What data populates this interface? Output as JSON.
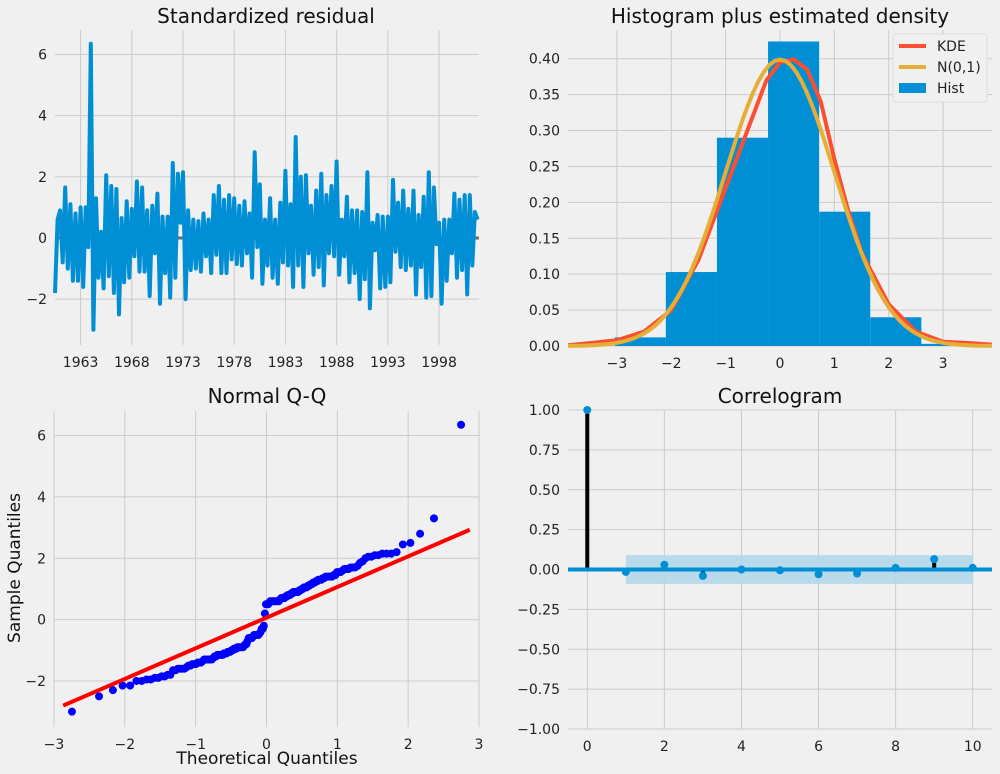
{
  "chart_data": [
    {
      "type": "line",
      "title": "Standardized residual",
      "xlim": [
        1960.5,
        2001.9
      ],
      "ylim": [
        -3.5,
        6.8
      ],
      "xticks": [
        1963,
        1968,
        1973,
        1978,
        1983,
        1988,
        1993,
        1998
      ],
      "xtick_labels": [
        "1963",
        "1968",
        "1973",
        "1978",
        "1983",
        "1988",
        "1993",
        "1998"
      ],
      "yticks": [
        -2,
        0,
        2,
        4,
        6
      ],
      "ytick_labels": [
        "−2",
        "0",
        "2",
        "4",
        "6"
      ],
      "grid": true,
      "colors": {
        "line": "#008fd5",
        "zero_line": "#6d6d6d"
      },
      "points": [
        [
          1960.5,
          -1.8
        ],
        [
          1960.75,
          0.6
        ],
        [
          1961.0,
          0.9
        ],
        [
          1961.25,
          -0.8
        ],
        [
          1961.5,
          1.65
        ],
        [
          1961.75,
          -1.0
        ],
        [
          1962.0,
          1.1
        ],
        [
          1962.25,
          -1.4
        ],
        [
          1962.5,
          0.8
        ],
        [
          1962.75,
          -1.4
        ],
        [
          1963.0,
          1.0
        ],
        [
          1963.25,
          -1.6
        ],
        [
          1963.5,
          1.0
        ],
        [
          1963.75,
          -0.3
        ],
        [
          1964.0,
          6.35
        ],
        [
          1964.25,
          -3.0
        ],
        [
          1964.5,
          1.3
        ],
        [
          1964.75,
          -1.3
        ],
        [
          1965.0,
          0.2
        ],
        [
          1965.25,
          -1.65
        ],
        [
          1965.5,
          2.05
        ],
        [
          1965.75,
          -1.25
        ],
        [
          1966.0,
          1.7
        ],
        [
          1966.25,
          -1.8
        ],
        [
          1966.5,
          1.6
        ],
        [
          1966.75,
          -2.5
        ],
        [
          1967.0,
          0.65
        ],
        [
          1967.25,
          -1.45
        ],
        [
          1967.5,
          1.2
        ],
        [
          1967.75,
          -1.3
        ],
        [
          1968.0,
          0.95
        ],
        [
          1968.25,
          -0.6
        ],
        [
          1968.5,
          1.85
        ],
        [
          1968.75,
          -1.1
        ],
        [
          1969.0,
          1.65
        ],
        [
          1969.25,
          -1.1
        ],
        [
          1969.5,
          0.9
        ],
        [
          1969.75,
          -1.9
        ],
        [
          1970.0,
          1.05
        ],
        [
          1970.25,
          -0.5
        ],
        [
          1970.5,
          1.45
        ],
        [
          1970.75,
          -2.15
        ],
        [
          1971.0,
          0.7
        ],
        [
          1971.25,
          -1.15
        ],
        [
          1971.5,
          0.7
        ],
        [
          1971.75,
          -1.95
        ],
        [
          1972.0,
          2.45
        ],
        [
          1972.25,
          -1.3
        ],
        [
          1972.5,
          2.1
        ],
        [
          1972.75,
          0.5
        ],
        [
          1973.0,
          2.15
        ],
        [
          1973.25,
          -2.0
        ],
        [
          1973.5,
          0.9
        ],
        [
          1973.75,
          -1.05
        ],
        [
          1974.0,
          0.6
        ],
        [
          1974.25,
          -1.0
        ],
        [
          1974.5,
          0.55
        ],
        [
          1974.75,
          -1.1
        ],
        [
          1975.0,
          0.8
        ],
        [
          1975.25,
          -0.6
        ],
        [
          1975.5,
          0.6
        ],
        [
          1975.75,
          -1.15
        ],
        [
          1976.0,
          1.4
        ],
        [
          1976.25,
          -0.55
        ],
        [
          1976.5,
          1.7
        ],
        [
          1976.75,
          -1.15
        ],
        [
          1977.0,
          1.25
        ],
        [
          1977.25,
          -1.15
        ],
        [
          1977.5,
          1.4
        ],
        [
          1977.75,
          -0.7
        ],
        [
          1978.0,
          1.3
        ],
        [
          1978.25,
          -0.85
        ],
        [
          1978.5,
          1.05
        ],
        [
          1978.75,
          -0.9
        ],
        [
          1979.0,
          1.2
        ],
        [
          1979.25,
          -0.5
        ],
        [
          1979.5,
          0.8
        ],
        [
          1979.75,
          -1.3
        ],
        [
          1980.0,
          2.8
        ],
        [
          1980.25,
          -0.3
        ],
        [
          1980.5,
          1.75
        ],
        [
          1980.75,
          -1.5
        ],
        [
          1981.0,
          0.6
        ],
        [
          1981.25,
          -0.9
        ],
        [
          1981.5,
          1.3
        ],
        [
          1981.75,
          -1.3
        ],
        [
          1982.0,
          0.6
        ],
        [
          1982.25,
          -1.5
        ],
        [
          1982.5,
          1.15
        ],
        [
          1982.75,
          -0.8
        ],
        [
          1983.0,
          2.2
        ],
        [
          1983.25,
          -0.9
        ],
        [
          1983.5,
          1.1
        ],
        [
          1983.75,
          -1.6
        ],
        [
          1984.0,
          3.3
        ],
        [
          1984.25,
          -0.9
        ],
        [
          1984.5,
          2.0
        ],
        [
          1984.75,
          -1.6
        ],
        [
          1985.0,
          2.05
        ],
        [
          1985.25,
          -0.5
        ],
        [
          1985.5,
          1.05
        ],
        [
          1985.75,
          -1.2
        ],
        [
          1986.0,
          1.55
        ],
        [
          1986.25,
          -0.95
        ],
        [
          1986.5,
          2.1
        ],
        [
          1986.75,
          -1.55
        ],
        [
          1987.0,
          1.4
        ],
        [
          1987.25,
          -0.5
        ],
        [
          1987.5,
          1.7
        ],
        [
          1987.75,
          -0.6
        ],
        [
          1988.0,
          2.5
        ],
        [
          1988.25,
          -1.2
        ],
        [
          1988.5,
          0.6
        ],
        [
          1988.75,
          -0.6
        ],
        [
          1989.0,
          1.35
        ],
        [
          1989.25,
          -1.45
        ],
        [
          1989.5,
          0.9
        ],
        [
          1989.75,
          -1.15
        ],
        [
          1990.0,
          0.9
        ],
        [
          1990.25,
          -2.0
        ],
        [
          1990.5,
          0.85
        ],
        [
          1990.75,
          -1.35
        ],
        [
          1991.0,
          2.15
        ],
        [
          1991.25,
          -2.3
        ],
        [
          1991.5,
          0.5
        ],
        [
          1991.75,
          -0.4
        ],
        [
          1992.0,
          0.75
        ],
        [
          1992.25,
          -1.65
        ],
        [
          1992.5,
          0.7
        ],
        [
          1992.75,
          -1.6
        ],
        [
          1993.0,
          0.7
        ],
        [
          1993.25,
          -1.45
        ],
        [
          1993.5,
          1.9
        ],
        [
          1993.75,
          -0.45
        ],
        [
          1994.0,
          1.15
        ],
        [
          1994.25,
          -0.95
        ],
        [
          1994.5,
          1.55
        ],
        [
          1994.75,
          -1.05
        ],
        [
          1995.0,
          0.95
        ],
        [
          1995.25,
          -0.9
        ],
        [
          1995.5,
          1.55
        ],
        [
          1995.75,
          -1.85
        ],
        [
          1996.0,
          0.75
        ],
        [
          1996.25,
          -0.95
        ],
        [
          1996.5,
          1.35
        ],
        [
          1996.75,
          -1.95
        ],
        [
          1997.0,
          2.15
        ],
        [
          1997.25,
          -1.9
        ],
        [
          1997.5,
          1.65
        ],
        [
          1997.75,
          -0.2
        ],
        [
          1998.0,
          0.5
        ],
        [
          1998.25,
          -2.15
        ],
        [
          1998.5,
          0.6
        ],
        [
          1998.75,
          -1.4
        ],
        [
          1999.0,
          0.6
        ],
        [
          1999.25,
          -0.5
        ],
        [
          1999.5,
          1.45
        ],
        [
          1999.75,
          -1.3
        ],
        [
          2000.0,
          1.25
        ],
        [
          2000.25,
          -1.05
        ],
        [
          2000.5,
          1.4
        ],
        [
          2000.75,
          -1.85
        ],
        [
          2001.0,
          1.4
        ],
        [
          2001.25,
          -0.9
        ],
        [
          2001.5,
          0.85
        ],
        [
          2001.75,
          0.6
        ]
      ]
    },
    {
      "type": "bar",
      "title": "Histogram plus estimated density",
      "xlim": [
        -3.9,
        3.9
      ],
      "ylim": [
        0,
        0.44
      ],
      "xticks": [
        -3,
        -2,
        -1,
        0,
        1,
        2,
        3
      ],
      "xtick_labels": [
        "−3",
        "−2",
        "−1",
        "0",
        "1",
        "2",
        "3"
      ],
      "yticks": [
        0,
        0.05,
        0.1,
        0.15,
        0.2,
        0.25,
        0.3,
        0.35,
        0.4
      ],
      "ytick_labels": [
        "0.00",
        "0.05",
        "0.10",
        "0.15",
        "0.20",
        "0.25",
        "0.30",
        "0.35",
        "0.40"
      ],
      "grid": true,
      "legend_position": "top-right",
      "legend": [
        {
          "label": "KDE",
          "color": "#fc4f30"
        },
        {
          "label": "N(0,1)",
          "color": "#e5ae38"
        },
        {
          "label": "Hist",
          "color": "#008fd5"
        }
      ],
      "hist": {
        "bin_edges": [
          -3.04,
          -2.1,
          -1.16,
          -0.22,
          0.72,
          1.66,
          2.6,
          3.54
        ],
        "density": [
          0.012,
          0.103,
          0.29,
          0.424,
          0.187,
          0.04,
          0.003
        ]
      },
      "kde": {
        "x": [
          -3.9,
          -3.5,
          -3.0,
          -2.5,
          -2.0,
          -1.5,
          -1.0,
          -0.5,
          -0.25,
          0.0,
          0.25,
          0.5,
          0.75,
          1.0,
          1.25,
          1.5,
          2.0,
          2.5,
          3.0,
          3.5,
          3.9
        ],
        "y": [
          0.001,
          0.004,
          0.008,
          0.02,
          0.05,
          0.12,
          0.22,
          0.32,
          0.37,
          0.395,
          0.399,
          0.385,
          0.34,
          0.26,
          0.19,
          0.13,
          0.058,
          0.02,
          0.006,
          0.004,
          0.002
        ]
      },
      "normal": {
        "mean": 0,
        "std": 1
      }
    },
    {
      "type": "scatter",
      "title": "Normal Q-Q",
      "xlabel": "Theoretical Quantiles",
      "ylabel": "Sample Quantiles",
      "xlim": [
        -3,
        3
      ],
      "ylim": [
        -3.5,
        6.8
      ],
      "xticks": [
        -3,
        -2,
        -1,
        0,
        1,
        2,
        3
      ],
      "xtick_labels": [
        "−3",
        "−2",
        "−1",
        "0",
        "1",
        "2",
        "3"
      ],
      "yticks": [
        -2,
        0,
        2,
        4,
        6
      ],
      "ytick_labels": [
        "−2",
        "0",
        "2",
        "4",
        "6"
      ],
      "grid": true,
      "colors": {
        "points": "#0000ff",
        "line": "#ff0000"
      },
      "reference_line": [
        [
          -2.87,
          -2.8
        ],
        [
          2.87,
          2.93
        ]
      ],
      "source": "sorted standardized residuals vs. normal quantiles"
    },
    {
      "type": "stem",
      "title": "Correlogram",
      "xlim": [
        -0.5,
        10.5
      ],
      "ylim": [
        -1,
        1
      ],
      "xticks": [
        0,
        2,
        4,
        6,
        8,
        10
      ],
      "xtick_labels": [
        "0",
        "2",
        "4",
        "6",
        "8",
        "10"
      ],
      "yticks": [
        -1,
        -0.75,
        -0.5,
        -0.25,
        0,
        0.25,
        0.5,
        0.75,
        1
      ],
      "ytick_labels": [
        "−1.00",
        "−0.75",
        "−0.50",
        "−0.25",
        "0.00",
        "0.25",
        "0.50",
        "0.75",
        "1.00"
      ],
      "grid": true,
      "lags": [
        0,
        1,
        2,
        3,
        4,
        5,
        6,
        7,
        8,
        9,
        10
      ],
      "acf": [
        1.0,
        -0.015,
        0.03,
        -0.04,
        0.0,
        -0.005,
        -0.03,
        -0.025,
        0.01,
        0.065,
        0.01
      ],
      "confidence_band": 0.09,
      "colors": {
        "marker": "#008fd5",
        "stem": "#000000",
        "band": "#b3d7ea"
      }
    }
  ]
}
